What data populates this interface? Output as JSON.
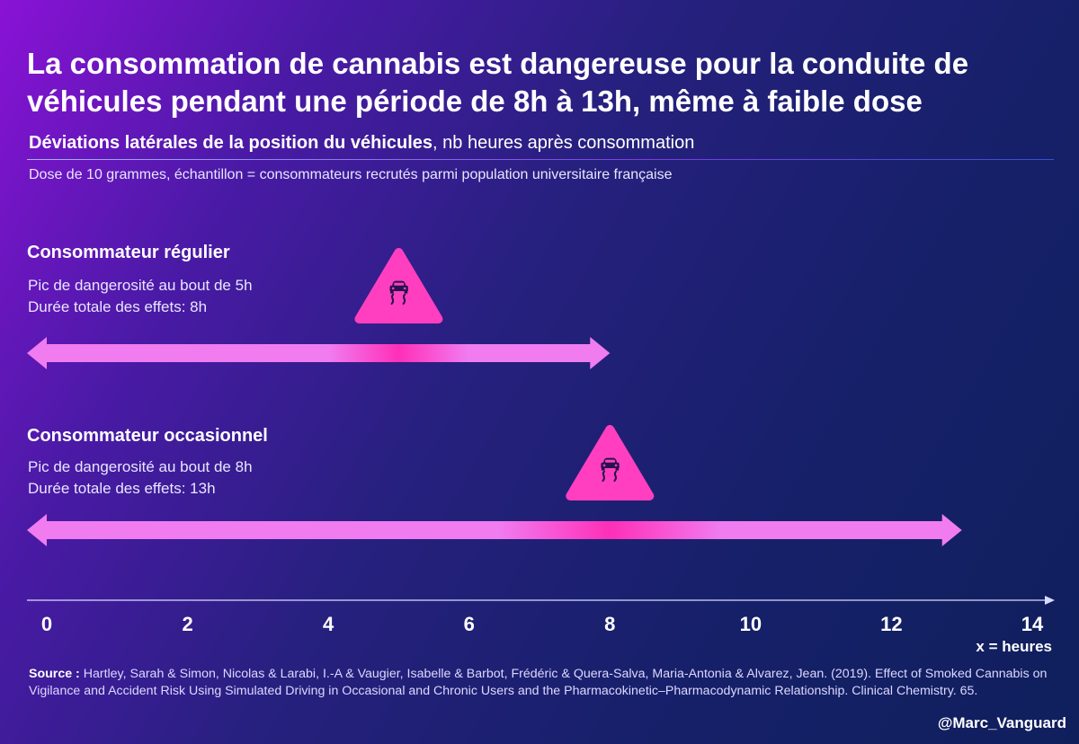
{
  "headline": {
    "line1": "La consommation de cannabis est dangereuse pour la conduite de",
    "line2": "véhicules pendant une période de 8h à 13h, même à faible dose"
  },
  "subtitle": {
    "bold": "Déviations latérales de la position du véhicules",
    "rest": ", nb heures après consommation"
  },
  "note": "Dose de 10 grammes, échantillon = consommateurs recrutés parmi population universitaire française",
  "chart_data": {
    "type": "range-arrows",
    "xlabel": "x = heures",
    "xlim": [
      0,
      14
    ],
    "xticks": [
      "0",
      "2",
      "4",
      "6",
      "8",
      "10",
      "12",
      "14"
    ],
    "series": [
      {
        "name": "Consommateur régulier",
        "peak_text": "Pic de dangerosité au bout de 5h",
        "duration_text": "Durée totale des effets: 8h",
        "start": 0,
        "peak": 5,
        "end": 8
      },
      {
        "name": "Consommateur occasionnel",
        "peak_text": "Pic de dangerosité au bout de 8h",
        "duration_text": "Durée totale des effets: 13h",
        "start": 0,
        "peak": 8,
        "end": 13
      }
    ],
    "icon": "slippery-road-warning-icon",
    "colors": {
      "arrow": "#f07cf0",
      "arrow_peak": "#ff2fb8",
      "icon": "#ff3fbf",
      "axis": "#d9dcff"
    }
  },
  "source": {
    "label": "Source :",
    "text": " Hartley, Sarah & Simon, Nicolas & Larabi, I.-A & Vaugier, Isabelle & Barbot, Frédéric & Quera-Salva, Maria-Antonia & Alvarez, Jean. (2019). Effect of Smoked Cannabis on Vigilance and Accident Risk Using Simulated Driving in Occasional and Chronic Users and the Pharmacokinetic–Pharmacodynamic Relationship. Clinical Chemistry. 65."
  },
  "handle": "@Marc_Vanguard"
}
